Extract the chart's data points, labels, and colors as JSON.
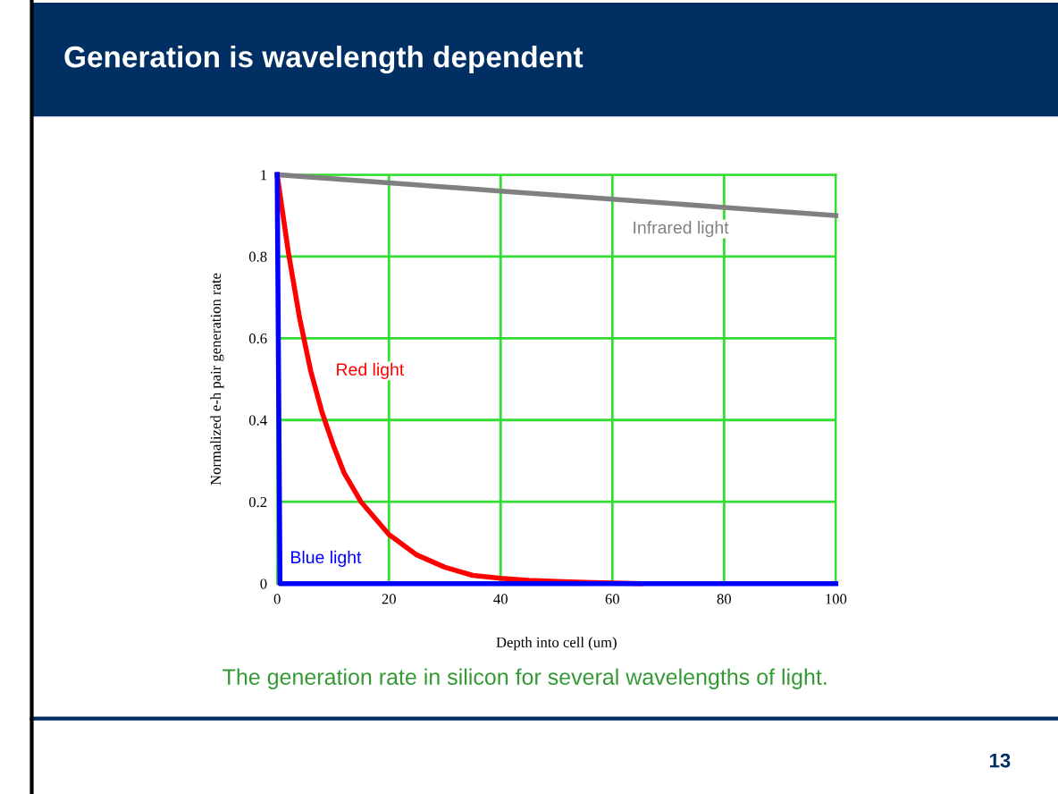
{
  "chart_data": {
    "type": "line",
    "title": "Generation is wavelength dependent",
    "xlabel": "Depth into cell (um)",
    "ylabel": "Normalized e-h pair generation rate",
    "xlim": [
      0,
      100
    ],
    "ylim": [
      0,
      1
    ],
    "xticks": [
      0,
      20,
      40,
      60,
      80,
      100
    ],
    "yticks": [
      0,
      0.2,
      0.4,
      0.6,
      0.8,
      1
    ],
    "grid": true,
    "legend": false,
    "marker": "none",
    "line_style": "solid",
    "series": [
      {
        "name": "Infrared light",
        "color": "#808080",
        "x": [
          0,
          20,
          40,
          60,
          80,
          100
        ],
        "values": [
          1,
          0.98,
          0.96,
          0.94,
          0.92,
          0.9
        ]
      },
      {
        "name": "Red light",
        "color": "#ff0000",
        "x": [
          0,
          2,
          4,
          6,
          8,
          10,
          12,
          15,
          20,
          25,
          30,
          35,
          40,
          45,
          50,
          55,
          65
        ],
        "values": [
          1,
          0.81,
          0.65,
          0.52,
          0.42,
          0.34,
          0.27,
          0.2,
          0.12,
          0.07,
          0.04,
          0.02,
          0.013,
          0.008,
          0.005,
          0.003,
          0
        ]
      },
      {
        "name": "Blue light",
        "color": "#0000ff",
        "x": [
          0,
          0.5,
          100
        ],
        "values": [
          1,
          0,
          0
        ]
      }
    ],
    "annotations": [
      "The generation rate in silicon for several wavelengths of light.",
      "13"
    ]
  }
}
